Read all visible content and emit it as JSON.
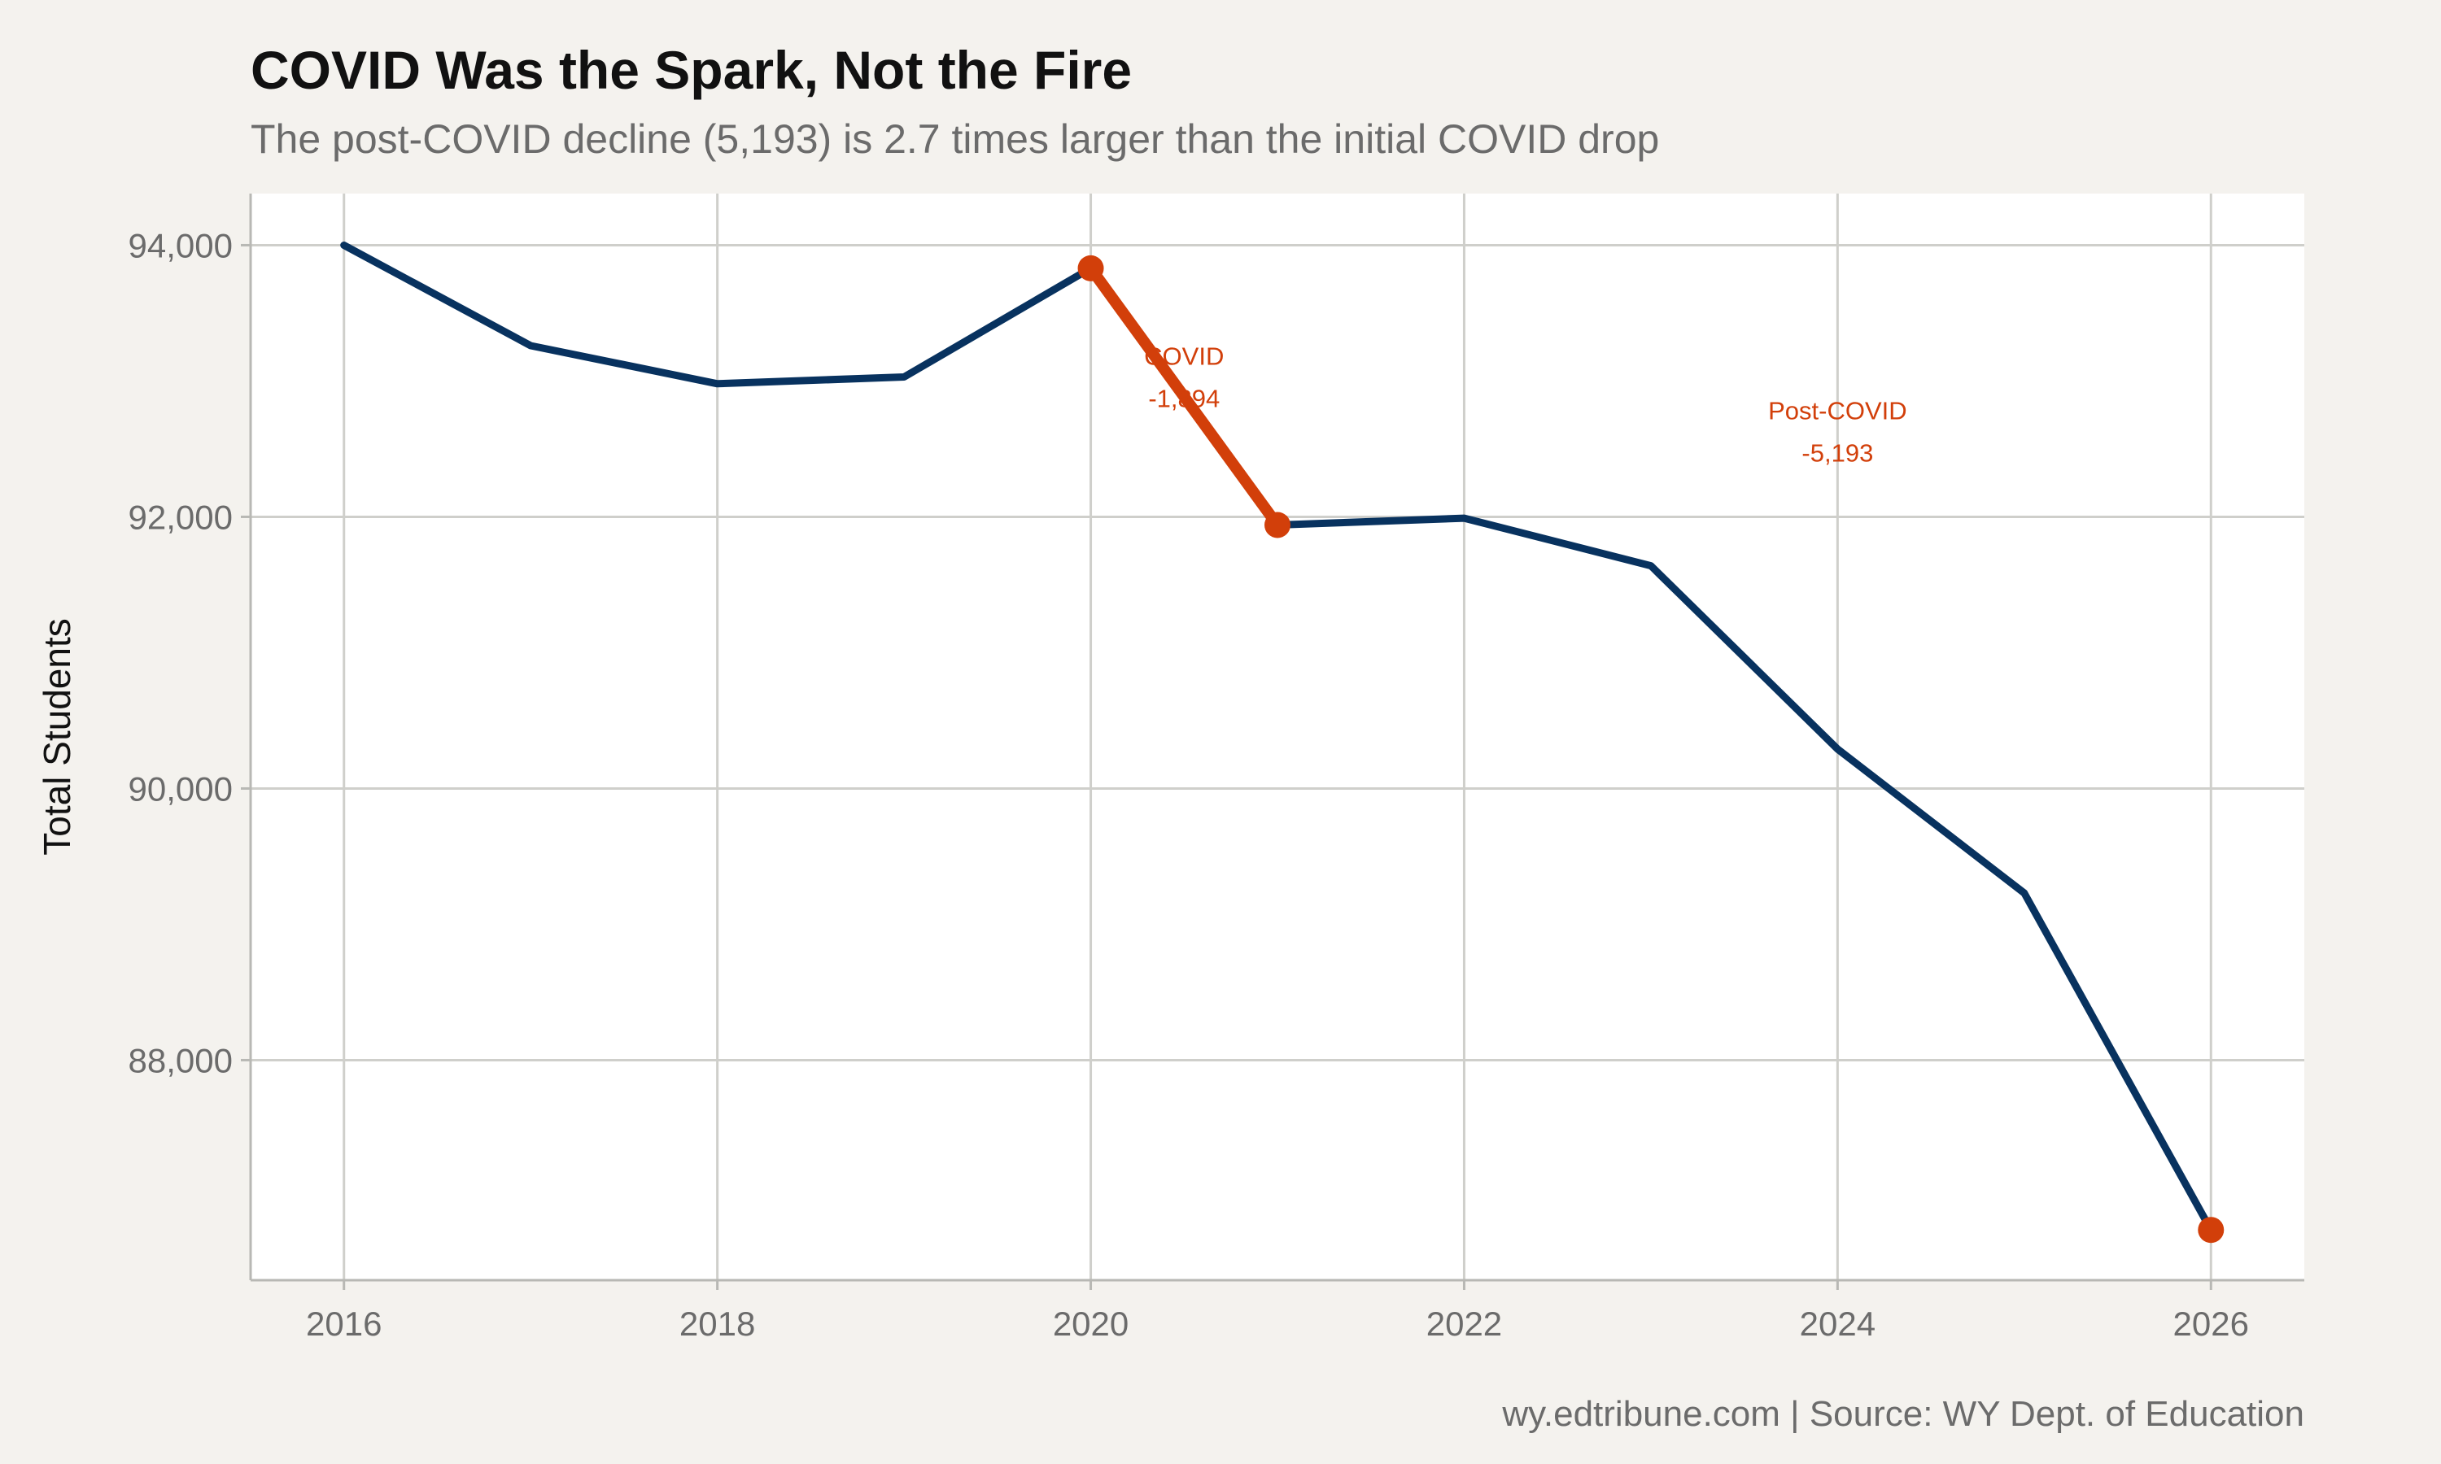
{
  "title": "COVID Was the Spark, Not the Fire",
  "subtitle": "The post-COVID decline (5,193) is 2.7 times larger than the initial COVID drop",
  "caption": "wy.edtribune.com | Source: WY Dept. of Education",
  "colors": {
    "background": "#f4f2ee",
    "panel": "#ffffff",
    "grid": "#cfcfcb",
    "main_line": "#08325f",
    "highlight": "#d23f0a"
  },
  "chart_data": {
    "type": "line",
    "title": "COVID Was the Spark, Not the Fire",
    "subtitle": "The post-COVID decline (5,193) is 2.7 times larger than the initial COVID drop",
    "xlabel": "",
    "ylabel": "Total Students",
    "x": [
      2016,
      2017,
      2018,
      2019,
      2020,
      2021,
      2022,
      2023,
      2024,
      2025,
      2026
    ],
    "series": [
      {
        "values": [
          94000,
          93260,
          92980,
          93030,
          93830,
          91940,
          91990,
          91640,
          90290,
          89230,
          86750
        ]
      }
    ],
    "highlight_segment": {
      "x": [
        2020,
        2021
      ],
      "values": [
        93830,
        91940
      ]
    },
    "highlight_points": [
      {
        "x": 2020,
        "y": 93830
      },
      {
        "x": 2021,
        "y": 91940
      },
      {
        "x": 2026,
        "y": 86750
      }
    ],
    "xlim": [
      2015.5,
      2026.5
    ],
    "ylim": [
      86380,
      94380
    ],
    "xticks": [
      2016,
      2018,
      2020,
      2022,
      2024,
      2026
    ],
    "xtick_labels": [
      "2016",
      "2018",
      "2020",
      "2022",
      "2024",
      "2026"
    ],
    "yticks": [
      88000,
      90000,
      92000,
      94000
    ],
    "ytick_labels": [
      "88,000",
      "90,000",
      "92,000",
      "94,000"
    ],
    "grid": true,
    "annotations": [
      {
        "x": 2020.5,
        "y": 93000,
        "line1": "COVID",
        "line2": "-1,894"
      },
      {
        "x": 2024,
        "y": 92600,
        "line1": "Post-COVID",
        "line2": "-5,193"
      }
    ]
  }
}
